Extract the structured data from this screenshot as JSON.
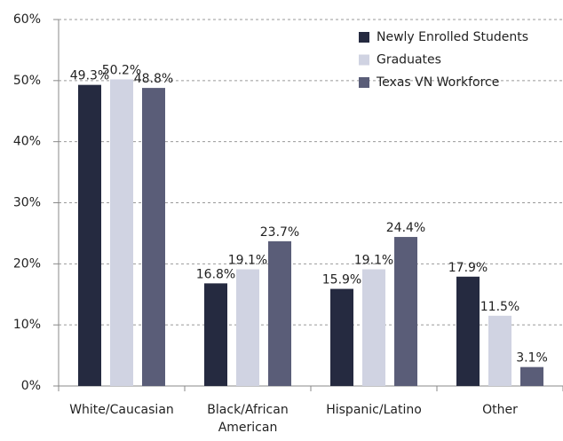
{
  "chart_data": {
    "type": "bar",
    "categories": [
      "White/Caucasian",
      "Black/African American",
      "Hispanic/Latino",
      "Other"
    ],
    "series": [
      {
        "name": "Newly Enrolled Students",
        "color": "#252a40",
        "values": [
          49.3,
          16.8,
          15.9,
          17.9
        ],
        "value_labels": [
          "49.3%",
          "16.8%",
          "15.9%",
          "17.9%"
        ]
      },
      {
        "name": "Graduates",
        "color": "#d0d3e2",
        "values": [
          50.2,
          19.1,
          19.1,
          11.5
        ],
        "value_labels": [
          "50.2%",
          "19.1%",
          "19.1%",
          "11.5%"
        ]
      },
      {
        "name": "Texas VN Workforce",
        "color": "#5a5d78",
        "values": [
          48.8,
          23.7,
          24.4,
          3.1
        ],
        "value_labels": [
          "48.8%",
          "23.7%",
          "24.4%",
          "3.1%"
        ]
      }
    ],
    "ylim": [
      0,
      60
    ],
    "yticks": [
      {
        "value": 0,
        "label": "0%"
      },
      {
        "value": 10,
        "label": "10%"
      },
      {
        "value": 20,
        "label": "20%"
      },
      {
        "value": 30,
        "label": "30%"
      },
      {
        "value": 40,
        "label": "40%"
      },
      {
        "value": 50,
        "label": "50%"
      },
      {
        "value": 60,
        "label": "60%"
      }
    ],
    "grid": true,
    "legend": "top-right"
  }
}
